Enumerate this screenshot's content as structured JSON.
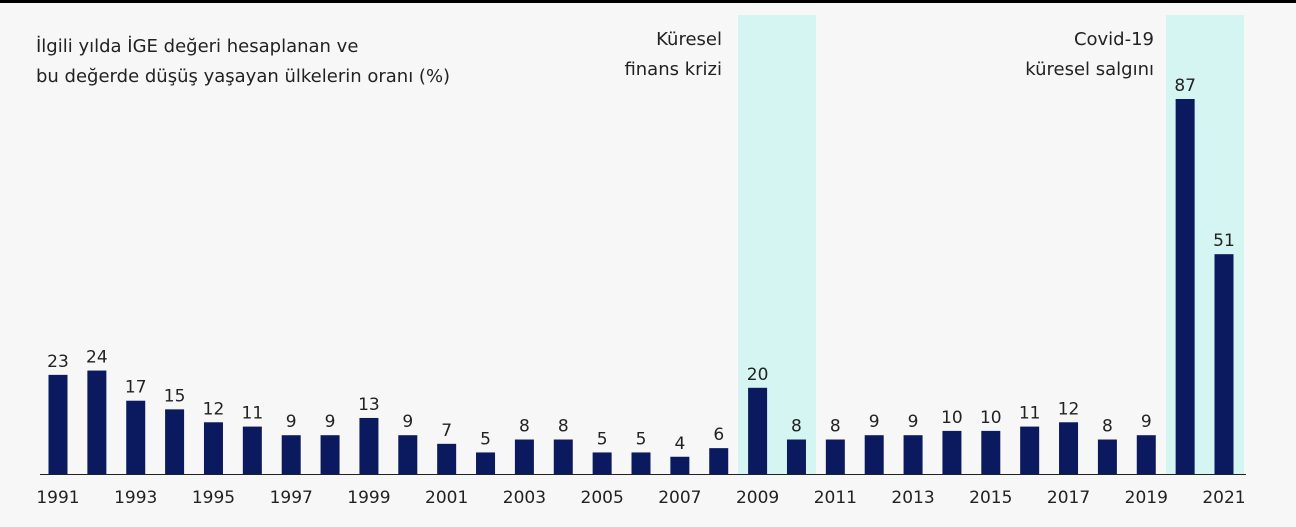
{
  "chart_data": {
    "type": "bar",
    "title": [
      "İlgili yılda İGE değeri hesaplanan ve",
      "bu değerde düşüş yaşayan ülkelerin oranı (%)"
    ],
    "annotations": [
      [
        "Küresel",
        "finans krizi"
      ],
      [
        "Covid-19",
        "küresel salgını"
      ]
    ],
    "categories": [
      "1991",
      null,
      "1993",
      null,
      "1995",
      null,
      "1997",
      null,
      "1999",
      null,
      "2001",
      null,
      "2003",
      null,
      "2005",
      null,
      "2007",
      null,
      "2009",
      null,
      "2011",
      null,
      "2013",
      null,
      "2015",
      null,
      "2017",
      null,
      "2019",
      null,
      "2021"
    ],
    "values": [
      23,
      24,
      17,
      15,
      12,
      11,
      9,
      9,
      13,
      9,
      7,
      5,
      8,
      8,
      5,
      5,
      4,
      6,
      20,
      8,
      8,
      9,
      9,
      10,
      10,
      11,
      12,
      8,
      9,
      87,
      51
    ],
    "color": "#0b1a5e"
  }
}
